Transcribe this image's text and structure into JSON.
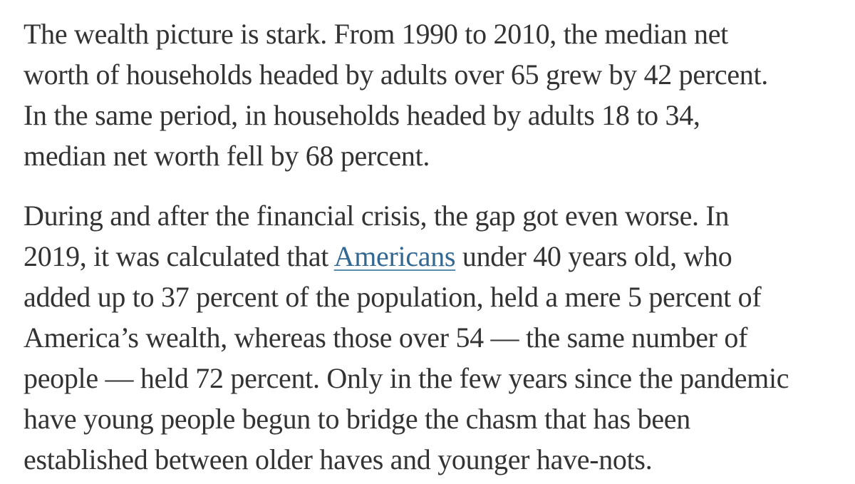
{
  "colors": {
    "background": "#ffffff",
    "text": "#333333",
    "link": "#326891"
  },
  "article": {
    "link_label": "Americans",
    "paragraphs": [
      {
        "name": "paragraph-wealth-gap-1990-2010",
        "lines": [
          {
            "segments": [
              {
                "text": "The wealth picture is stark. From 1990 to 2010, the median net"
              }
            ]
          },
          {
            "segments": [
              {
                "text": "worth of households headed by adults over 65 grew by 42 percent."
              }
            ]
          },
          {
            "segments": [
              {
                "text": "In the same period, in households headed by adults 18 to 34,"
              }
            ]
          },
          {
            "segments": [
              {
                "text": "median net worth fell by 68 percent."
              }
            ]
          }
        ]
      },
      {
        "name": "paragraph-financial-crisis-gap",
        "lines": [
          {
            "segments": [
              {
                "text": "During and after the financial crisis, the gap got even worse. In"
              }
            ]
          },
          {
            "segments": [
              {
                "text": "2019, it was calculated that "
              },
              {
                "text": "Americans",
                "link": true
              },
              {
                "text": " under 40 years old, who"
              }
            ]
          },
          {
            "segments": [
              {
                "text": "added up to 37 percent of the population, held a mere 5 percent of"
              }
            ]
          },
          {
            "segments": [
              {
                "text": "America’s wealth, whereas those over 54 — the same number of"
              }
            ]
          },
          {
            "segments": [
              {
                "text": "people — held 72 percent. Only in the few years since the pandemic"
              }
            ]
          },
          {
            "segments": [
              {
                "text": "have young people begun to bridge the chasm that has been"
              }
            ]
          },
          {
            "segments": [
              {
                "text": "established between older haves and younger have-nots."
              }
            ]
          }
        ]
      }
    ]
  }
}
